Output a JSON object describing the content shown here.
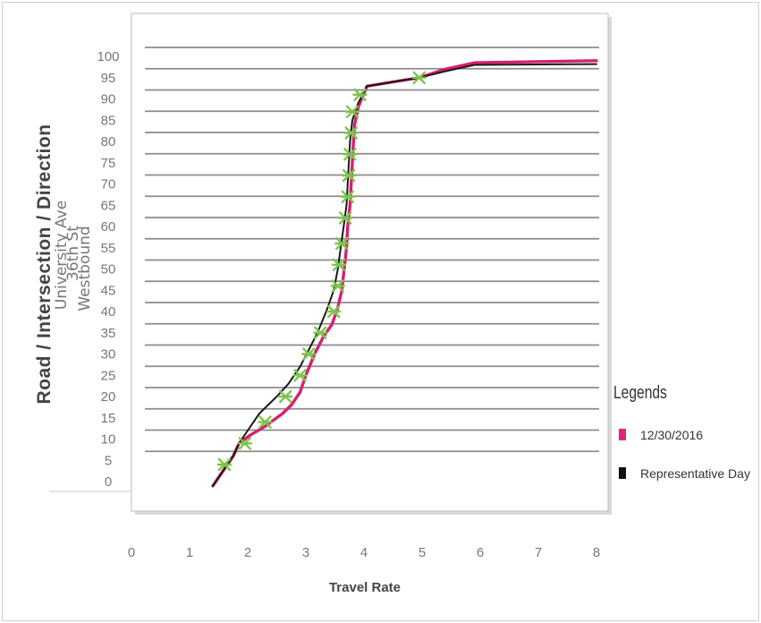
{
  "chart_data": {
    "type": "line",
    "ylabel": "Road / Intersection / Direction",
    "ylabel_sub": [
      "University Ave",
      "36th St",
      "Westbound"
    ],
    "xlabel": "Travel Rate",
    "xlim": [
      0,
      8
    ],
    "ylim": [
      0,
      100
    ],
    "x_ticks": [
      0,
      1,
      2,
      3,
      4,
      5,
      6,
      7,
      8
    ],
    "y_ticks": [
      0,
      5,
      10,
      15,
      20,
      25,
      30,
      35,
      40,
      45,
      50,
      55,
      60,
      65,
      70,
      75,
      80,
      85,
      90,
      95,
      100
    ],
    "grid": "horizontal",
    "legend_position": "right",
    "legend_title": "Legends",
    "series": [
      {
        "name": "12/30/2016",
        "color": "#d6206f",
        "points": [
          [
            1.4,
            -1
          ],
          [
            1.55,
            2
          ],
          [
            1.75,
            6
          ],
          [
            1.85,
            9
          ],
          [
            2.05,
            11
          ],
          [
            2.3,
            13
          ],
          [
            2.6,
            16
          ],
          [
            2.75,
            18
          ],
          [
            2.9,
            21
          ],
          [
            3.0,
            25
          ],
          [
            3.15,
            30
          ],
          [
            3.3,
            34
          ],
          [
            3.45,
            37
          ],
          [
            3.55,
            41
          ],
          [
            3.62,
            45
          ],
          [
            3.66,
            50
          ],
          [
            3.7,
            55
          ],
          [
            3.72,
            60
          ],
          [
            3.76,
            65
          ],
          [
            3.78,
            70
          ],
          [
            3.8,
            75
          ],
          [
            3.82,
            80
          ],
          [
            3.84,
            84
          ],
          [
            3.9,
            88
          ],
          [
            4.05,
            93
          ],
          [
            4.5,
            94
          ],
          [
            4.95,
            95
          ],
          [
            5.4,
            97
          ],
          [
            5.9,
            98.5
          ],
          [
            8.0,
            99
          ]
        ]
      },
      {
        "name": "Representative Day",
        "color": "#1a1a1a",
        "points": [
          [
            1.4,
            -1
          ],
          [
            1.55,
            2
          ],
          [
            1.75,
            6
          ],
          [
            1.85,
            9
          ],
          [
            2.0,
            12
          ],
          [
            2.2,
            16
          ],
          [
            2.5,
            20
          ],
          [
            2.7,
            23
          ],
          [
            2.9,
            27
          ],
          [
            3.05,
            31
          ],
          [
            3.2,
            35
          ],
          [
            3.35,
            40
          ],
          [
            3.48,
            45
          ],
          [
            3.55,
            50
          ],
          [
            3.6,
            55
          ],
          [
            3.65,
            60
          ],
          [
            3.7,
            65
          ],
          [
            3.72,
            70
          ],
          [
            3.74,
            75
          ],
          [
            3.76,
            80
          ],
          [
            3.8,
            85
          ],
          [
            3.9,
            89
          ],
          [
            4.05,
            93
          ],
          [
            4.5,
            94
          ],
          [
            4.95,
            95
          ],
          [
            5.4,
            96.5
          ],
          [
            5.9,
            98
          ],
          [
            8.0,
            98.2
          ]
        ]
      }
    ],
    "markers": {
      "color": "#7dc44e",
      "points": [
        [
          1.6,
          4
        ],
        [
          1.95,
          9
        ],
        [
          2.3,
          14
        ],
        [
          2.65,
          20
        ],
        [
          2.9,
          25
        ],
        [
          3.05,
          30
        ],
        [
          3.25,
          35
        ],
        [
          3.48,
          40
        ],
        [
          3.55,
          46
        ],
        [
          3.57,
          51
        ],
        [
          3.62,
          56
        ],
        [
          3.68,
          62
        ],
        [
          3.72,
          67
        ],
        [
          3.74,
          72
        ],
        [
          3.76,
          77
        ],
        [
          3.78,
          82
        ],
        [
          3.8,
          87
        ],
        [
          3.93,
          91
        ],
        [
          4.95,
          95
        ]
      ]
    }
  },
  "legend": {
    "title": "Legends",
    "items": [
      {
        "label": "12/30/2016",
        "color": "#e0267a"
      },
      {
        "label": "Representative Day",
        "color": "#111111"
      }
    ]
  }
}
